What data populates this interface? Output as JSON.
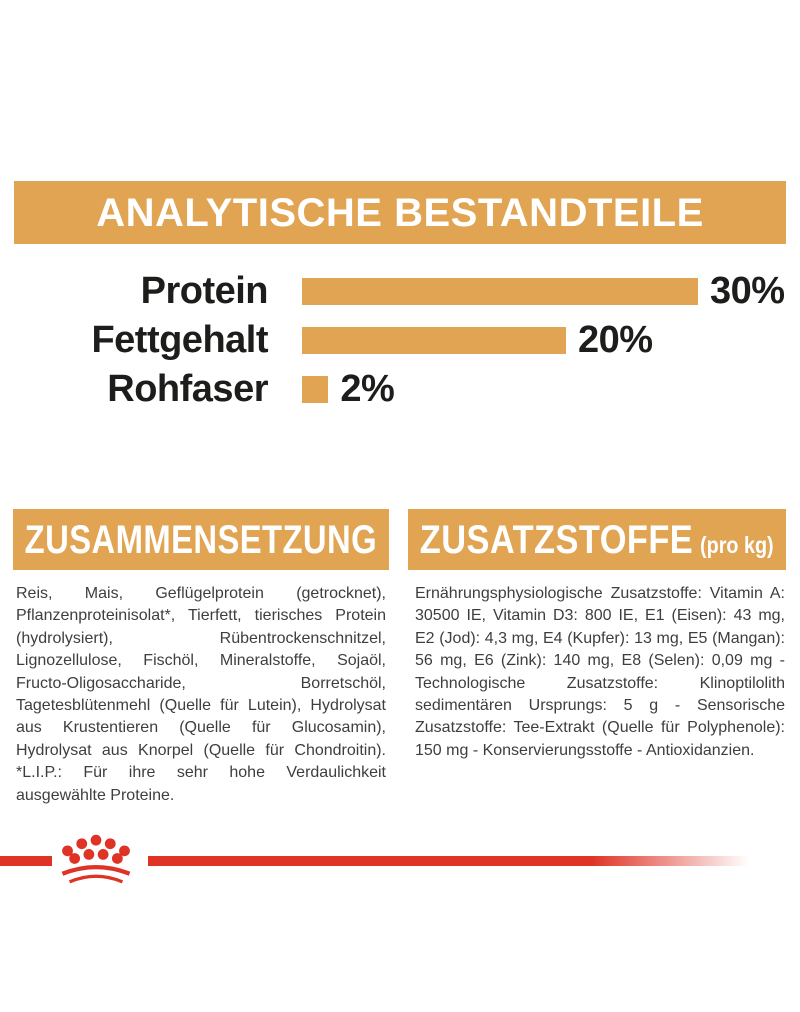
{
  "colors": {
    "gold": "#e0a452",
    "red": "#de3325",
    "heading_text": "#ffffff",
    "label_ink": "#1d1d1b",
    "body_text": "#3e3e3e",
    "page_background": "#ffffff"
  },
  "analytics": {
    "title": "ANALYTISCHE BESTANDTEILE"
  },
  "chart_data": {
    "type": "bar",
    "orientation": "horizontal",
    "title": "ANALYTISCHE BESTANDTEILE",
    "categories": [
      "Protein",
      "Fettgehalt",
      "Rohfaser"
    ],
    "values": [
      30,
      20,
      2
    ],
    "unit": "%",
    "value_labels": [
      "30%",
      "20%",
      "2%"
    ],
    "xlim": [
      0,
      30
    ],
    "grid": false,
    "legend": false,
    "bar_color": "#e0a452"
  },
  "composition": {
    "title": "ZUSAMMENSETZUNG",
    "body": "Reis, Mais, Geflügelprotein (getrocknet), Pflanzenproteinisolat*, Tierfett, tierisches Protein (hydrolysiert), Rübentrockenschnitzel, Lignozellulose, Fischöl, Mineralstoffe, Sojaöl, Fructo-Oligosaccharide, Borretschöl, Tagetesblütenmehl (Quelle für Lutein), Hydrolysat aus Krustentieren (Quelle für Glucosamin), Hydrolysat aus Knorpel (Quelle für Chondroitin). *L.I.P.: Für ihre sehr hohe Verdaulichkeit ausgewählte Proteine."
  },
  "additives": {
    "title": "ZUSATZSTOFFE",
    "title_suffix": "(pro kg)",
    "body": "Ernährungsphysiologische Zusatzstoffe: Vitamin A: 30500 IE, Vitamin D3: 800 IE, E1 (Eisen): 43 mg, E2 (Jod): 4,3 mg, E4 (Kupfer): 13 mg, E5 (Mangan): 56 mg, E6 (Zink): 140 mg, E8 (Selen): 0,09 mg - Technologische Zusatzstoffe: Klinoptilolith sedimentären Ursprungs: 5 g - Sensorische Zusatzstoffe: Tee-Extrakt (Quelle für Polyphenole): 150 mg - Konservierungsstoffe - Antioxidanzien."
  },
  "footer": {
    "logo": "royal-canin-crown-logo"
  }
}
